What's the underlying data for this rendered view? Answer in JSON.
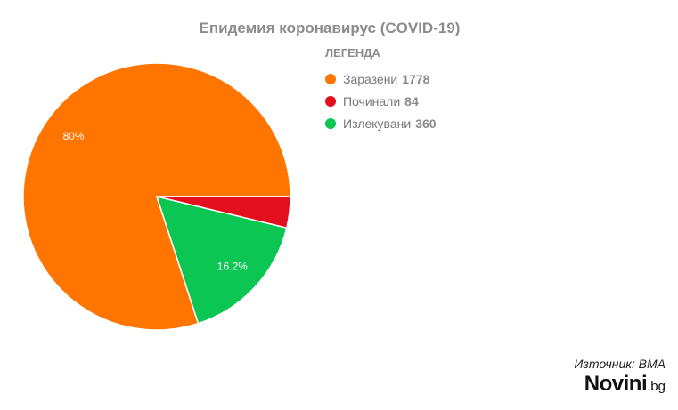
{
  "chart_data": {
    "type": "pie",
    "title": "Епидемия коронавирус (COVID-19)",
    "legend_title": "ЛЕГЕНДА",
    "legend_position": "top-right",
    "slices": [
      {
        "name": "Заразени",
        "value": 1778,
        "color": "#ff7500",
        "label": "80%"
      },
      {
        "name": "Починали",
        "value": 84,
        "color": "#e30e1e",
        "label": ""
      },
      {
        "name": "Излекувани",
        "value": 360,
        "color": "#0bc653",
        "label": "16.2%"
      }
    ]
  },
  "footer": {
    "source": "Източник: ВМА",
    "logo_brand": "Novini",
    "logo_tld": ".bg"
  }
}
